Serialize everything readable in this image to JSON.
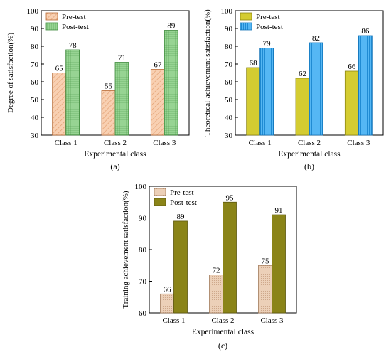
{
  "colors": {
    "pre_a": "#f7c7a2",
    "post_a": "#8fcf8a",
    "pre_b": "#d4cc31",
    "post_b": "#39a9ef",
    "pre_c": "#e8c7ad",
    "post_c": "#8a8418"
  },
  "chart_data": [
    {
      "type": "bar",
      "panel_label": "(a)",
      "xlabel": "Experimental class",
      "ylabel": "Degree of satisfaction(%)",
      "ylim": [
        30,
        100
      ],
      "yticks": [
        "30",
        "40",
        "50",
        "60",
        "70",
        "80",
        "90",
        "100"
      ],
      "categories": [
        "Class 1",
        "Class 2",
        "Class 3"
      ],
      "legend": "top-left",
      "series": [
        {
          "name": "Pre-test",
          "values": [
            65,
            55,
            67
          ],
          "labels": [
            "65",
            "55",
            "67"
          ]
        },
        {
          "name": "Post-test",
          "values": [
            78,
            71,
            89
          ],
          "labels": [
            "78",
            "71",
            "89"
          ]
        }
      ]
    },
    {
      "type": "bar",
      "panel_label": "(b)",
      "xlabel": "Experimental class",
      "ylabel": "Theoretical-achievement satisfaction(%)",
      "ylim": [
        30,
        100
      ],
      "yticks": [
        "30",
        "40",
        "50",
        "60",
        "70",
        "80",
        "90",
        "100"
      ],
      "categories": [
        "Class 1",
        "Class 2",
        "Class 3"
      ],
      "legend": "top-left",
      "series": [
        {
          "name": "Pre-test",
          "values": [
            68,
            62,
            66
          ],
          "labels": [
            "68",
            "62",
            "66"
          ]
        },
        {
          "name": "Post-test",
          "values": [
            79,
            82,
            86
          ],
          "labels": [
            "79",
            "82",
            "86"
          ]
        }
      ]
    },
    {
      "type": "bar",
      "panel_label": "(c)",
      "xlabel": "Experimental class",
      "ylabel": "Training achievement satisfaction(%)",
      "ylim": [
        60,
        100
      ],
      "yticks": [
        "60",
        "70",
        "80",
        "90",
        "100"
      ],
      "categories": [
        "Class 1",
        "Class 2",
        "Class 3"
      ],
      "legend": "top-left",
      "series": [
        {
          "name": "Pre-test",
          "values": [
            66,
            72,
            75
          ],
          "labels": [
            "66",
            "72",
            "75"
          ]
        },
        {
          "name": "Post-test",
          "values": [
            89,
            95,
            91
          ],
          "labels": [
            "89",
            "95",
            "91"
          ]
        }
      ]
    }
  ]
}
